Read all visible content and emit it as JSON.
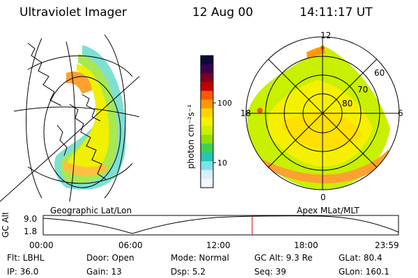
{
  "header": {
    "instrument": "Ultraviolet Imager",
    "date": "12 Aug 00",
    "time": "14:11:17 UT"
  },
  "left_panel": {
    "caption": "Geographic Lat/Lon"
  },
  "right_panel": {
    "caption": "Apex MLat/MLT",
    "mlt_labels": [
      "12",
      "18",
      "6",
      "0"
    ],
    "lat_labels": [
      "60",
      "70",
      "80"
    ]
  },
  "colorbar": {
    "unit_label": "photon cm⁻²s⁻¹",
    "ticks": [
      "100",
      "10"
    ],
    "colors": [
      "#0b0b3a",
      "#3a0050",
      "#7a0020",
      "#c00000",
      "#ff5500",
      "#ff9900",
      "#ffd400",
      "#f6f000",
      "#c8f000",
      "#8ee000",
      "#40d050",
      "#20c8b0",
      "#80e0f0",
      "#d8f0f8",
      "#f4f8fb"
    ]
  },
  "track": {
    "axis_title": "GC Alt",
    "y_ticks": [
      "9.0",
      "1.8"
    ],
    "x_ticks": [
      "00:00",
      "06:00",
      "12:00",
      "18:00",
      "23:59"
    ],
    "marker_color": "#cc0000"
  },
  "footer": {
    "row1": {
      "flt": "Flt: LBHL",
      "door": "Door: Open",
      "mode": "Mode: Normal",
      "gcalt": "GC Alt: 9.3 Re",
      "glat": "GLat:  80.4"
    },
    "row2": {
      "ip": "IP: 36.0",
      "gain": "Gain: 13",
      "dsp": "Dsp:     5.2",
      "seq": "Seq: 39",
      "glon": "GLon: 160.1"
    }
  }
}
